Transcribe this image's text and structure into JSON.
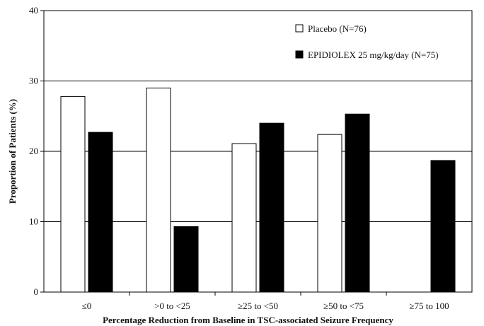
{
  "chart_data": {
    "type": "bar",
    "title": "",
    "xlabel": "Percentage Reduction from Baseline in TSC-associated Seizure Frequency",
    "ylabel": "Proportion of Patients (%)",
    "categories": [
      "≤0",
      ">0 to <25",
      "≥25 to <50",
      "≥50 to <75",
      "≥75 to 100"
    ],
    "series": [
      {
        "name": "Placebo (N=76)",
        "color": "#ffffff",
        "values": [
          27.8,
          29.0,
          21.1,
          22.4,
          0
        ]
      },
      {
        "name": "EPIDIOLEX 25 mg/kg/day (N=75)",
        "color": "#000000",
        "values": [
          22.7,
          9.3,
          24.0,
          25.3,
          18.7
        ]
      }
    ],
    "ylim": [
      0,
      40
    ],
    "yticks": [
      0,
      10,
      20,
      30,
      40
    ],
    "grid": true,
    "legend_position": "top-right"
  }
}
